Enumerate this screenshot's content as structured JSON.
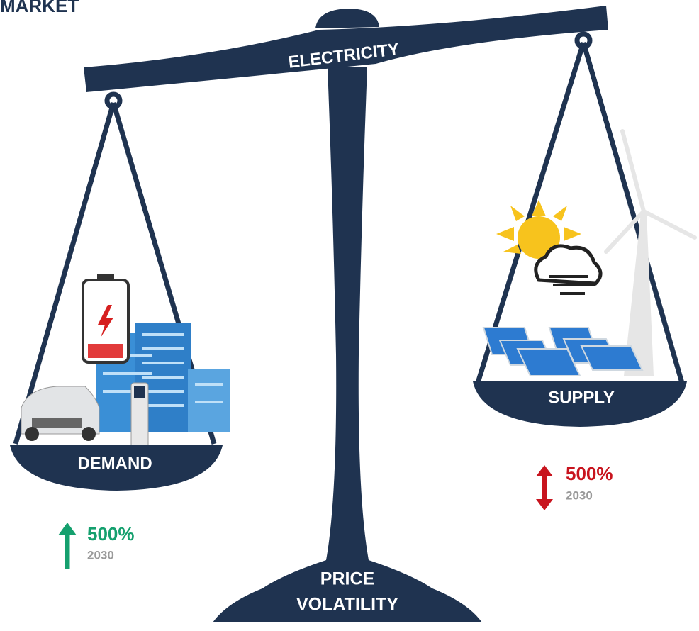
{
  "header": {
    "title": "MARKET"
  },
  "beam": {
    "label": "ELECTRICITY"
  },
  "demand": {
    "label": "DEMAND",
    "change": "500%",
    "year": "2030"
  },
  "supply": {
    "label": "SUPPLY",
    "change": "500%",
    "year": "2030"
  },
  "base": {
    "label_lines": [
      "PRICE",
      "VOLATILITY"
    ]
  }
}
